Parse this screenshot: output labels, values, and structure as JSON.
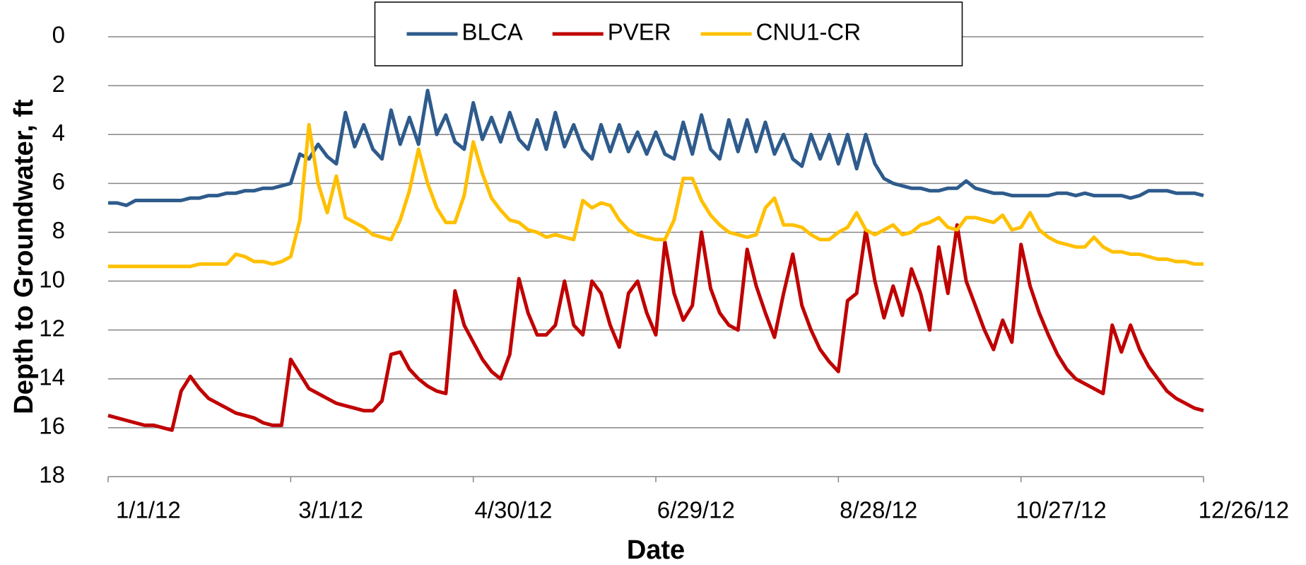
{
  "chart_data": {
    "type": "line",
    "y_axis_label": "Depth to Groundwater, ft",
    "x_axis_label": "Date",
    "ylim": [
      0,
      18
    ],
    "y_inverted": true,
    "yticks": [
      0,
      2,
      4,
      6,
      8,
      10,
      12,
      14,
      16,
      18
    ],
    "xlim": [
      "1/1/12",
      "12/26/12"
    ],
    "xticks": [
      "1/1/12",
      "3/1/12",
      "4/30/12",
      "6/29/12",
      "8/28/12",
      "10/27/12",
      "12/26/12"
    ],
    "grid": true,
    "legend": "top",
    "x": [
      "1/1/12",
      "1/4/12",
      "1/7/12",
      "1/10/12",
      "1/13/12",
      "1/16/12",
      "1/19/12",
      "1/22/12",
      "1/25/12",
      "1/28/12",
      "1/31/12",
      "2/3/12",
      "2/6/12",
      "2/9/12",
      "2/12/12",
      "2/15/12",
      "2/18/12",
      "2/21/12",
      "2/24/12",
      "2/27/12",
      "3/1/12",
      "3/4/12",
      "3/7/12",
      "3/10/12",
      "3/13/12",
      "3/16/12",
      "3/19/12",
      "3/22/12",
      "3/25/12",
      "3/28/12",
      "3/31/12",
      "4/3/12",
      "4/6/12",
      "4/9/12",
      "4/12/12",
      "4/15/12",
      "4/18/12",
      "4/21/12",
      "4/24/12",
      "4/27/12",
      "4/30/12",
      "5/3/12",
      "5/6/12",
      "5/9/12",
      "5/12/12",
      "5/15/12",
      "5/18/12",
      "5/21/12",
      "5/24/12",
      "5/27/12",
      "5/30/12",
      "6/2/12",
      "6/5/12",
      "6/8/12",
      "6/11/12",
      "6/14/12",
      "6/17/12",
      "6/20/12",
      "6/23/12",
      "6/26/12",
      "6/29/12",
      "7/2/12",
      "7/5/12",
      "7/8/12",
      "7/11/12",
      "7/14/12",
      "7/17/12",
      "7/20/12",
      "7/23/12",
      "7/26/12",
      "7/29/12",
      "8/1/12",
      "8/4/12",
      "8/7/12",
      "8/10/12",
      "8/13/12",
      "8/16/12",
      "8/19/12",
      "8/22/12",
      "8/25/12",
      "8/28/12",
      "8/31/12",
      "9/3/12",
      "9/6/12",
      "9/9/12",
      "9/12/12",
      "9/15/12",
      "9/18/12",
      "9/21/12",
      "9/24/12",
      "9/27/12",
      "9/30/12",
      "10/3/12",
      "10/6/12",
      "10/9/12",
      "10/12/12",
      "10/15/12",
      "10/18/12",
      "10/21/12",
      "10/24/12",
      "10/27/12",
      "10/30/12",
      "11/2/12",
      "11/5/12",
      "11/8/12",
      "11/11/12",
      "11/14/12",
      "11/17/12",
      "11/20/12",
      "11/23/12",
      "11/26/12",
      "11/29/12",
      "12/2/12",
      "12/5/12",
      "12/8/12",
      "12/11/12",
      "12/14/12",
      "12/17/12",
      "12/20/12",
      "12/23/12",
      "12/26/12"
    ],
    "series": [
      {
        "name": "BLCA",
        "color": "#2e5b8c",
        "values": [
          6.8,
          6.8,
          6.9,
          6.7,
          6.7,
          6.7,
          6.7,
          6.7,
          6.7,
          6.6,
          6.6,
          6.5,
          6.5,
          6.4,
          6.4,
          6.3,
          6.3,
          6.2,
          6.2,
          6.1,
          6.0,
          4.8,
          5.0,
          4.4,
          4.9,
          5.2,
          3.1,
          4.5,
          3.6,
          4.6,
          5.0,
          3.0,
          4.4,
          3.3,
          4.4,
          2.2,
          4.0,
          3.2,
          4.3,
          4.6,
          2.7,
          4.2,
          3.3,
          4.3,
          3.1,
          4.2,
          4.6,
          3.4,
          4.6,
          3.1,
          4.5,
          3.6,
          4.6,
          5.0,
          3.6,
          4.7,
          3.6,
          4.7,
          3.9,
          4.8,
          3.9,
          4.8,
          5.0,
          3.5,
          4.8,
          3.2,
          4.6,
          5.0,
          3.4,
          4.7,
          3.4,
          4.7,
          3.5,
          4.8,
          4.0,
          5.0,
          5.3,
          4.0,
          5.0,
          4.0,
          5.2,
          4.0,
          5.4,
          4.0,
          5.2,
          5.8,
          6.0,
          6.1,
          6.2,
          6.2,
          6.3,
          6.3,
          6.2,
          6.2,
          5.9,
          6.2,
          6.3,
          6.4,
          6.4,
          6.5,
          6.5,
          6.5,
          6.5,
          6.5,
          6.4,
          6.4,
          6.5,
          6.4,
          6.5,
          6.5,
          6.5,
          6.5,
          6.6,
          6.5,
          6.3,
          6.3,
          6.3,
          6.4,
          6.4,
          6.4,
          6.5
        ]
      },
      {
        "name": "PVER",
        "color": "#c00000",
        "values": [
          15.5,
          15.6,
          15.7,
          15.8,
          15.9,
          15.9,
          16.0,
          16.1,
          14.5,
          13.9,
          14.4,
          14.8,
          15.0,
          15.2,
          15.4,
          15.5,
          15.6,
          15.8,
          15.9,
          15.9,
          13.2,
          13.8,
          14.4,
          14.6,
          14.8,
          15.0,
          15.1,
          15.2,
          15.3,
          15.3,
          14.9,
          13.0,
          12.9,
          13.6,
          14.0,
          14.3,
          14.5,
          14.6,
          10.4,
          11.8,
          12.5,
          13.2,
          13.7,
          14.0,
          13.0,
          9.9,
          11.3,
          12.2,
          12.2,
          11.8,
          10.0,
          11.8,
          12.2,
          10.0,
          10.5,
          11.8,
          12.7,
          10.5,
          10.0,
          11.3,
          12.2,
          8.4,
          10.5,
          11.6,
          11.0,
          8.0,
          10.3,
          11.3,
          11.8,
          12.0,
          8.7,
          10.2,
          11.3,
          12.3,
          10.5,
          8.9,
          11.0,
          12.0,
          12.8,
          13.3,
          13.7,
          10.8,
          10.5,
          7.9,
          10.0,
          11.5,
          10.2,
          11.4,
          9.5,
          10.5,
          12.0,
          8.6,
          10.5,
          7.7,
          10.0,
          11.0,
          12.0,
          12.8,
          11.6,
          12.5,
          8.5,
          10.2,
          11.3,
          12.2,
          13.0,
          13.6,
          14.0,
          14.2,
          14.4,
          14.6,
          11.8,
          12.9,
          11.8,
          12.8,
          13.5,
          14.0,
          14.5,
          14.8,
          15.0,
          15.2,
          15.3
        ]
      },
      {
        "name": "CNU1-CR",
        "color": "#ffc000",
        "values": [
          9.4,
          9.4,
          9.4,
          9.4,
          9.4,
          9.4,
          9.4,
          9.4,
          9.4,
          9.4,
          9.3,
          9.3,
          9.3,
          9.3,
          8.9,
          9.0,
          9.2,
          9.2,
          9.3,
          9.2,
          9.0,
          7.5,
          3.6,
          6.0,
          7.2,
          5.7,
          7.4,
          7.6,
          7.8,
          8.1,
          8.2,
          8.3,
          7.5,
          6.3,
          4.6,
          6.0,
          7.0,
          7.6,
          7.6,
          6.5,
          4.3,
          5.6,
          6.6,
          7.1,
          7.5,
          7.6,
          7.9,
          8.0,
          8.2,
          8.1,
          8.2,
          8.3,
          6.7,
          7.0,
          6.8,
          6.9,
          7.5,
          7.9,
          8.1,
          8.2,
          8.3,
          8.3,
          7.5,
          5.8,
          5.8,
          6.7,
          7.3,
          7.7,
          8.0,
          8.1,
          8.2,
          8.1,
          7.0,
          6.6,
          7.7,
          7.7,
          7.8,
          8.1,
          8.3,
          8.3,
          8.0,
          7.8,
          7.2,
          7.9,
          8.1,
          7.9,
          7.7,
          8.1,
          8.0,
          7.7,
          7.6,
          7.4,
          7.8,
          7.9,
          7.4,
          7.4,
          7.5,
          7.6,
          7.3,
          7.9,
          7.8,
          7.2,
          7.9,
          8.2,
          8.4,
          8.5,
          8.6,
          8.6,
          8.2,
          8.6,
          8.8,
          8.8,
          8.9,
          8.9,
          9.0,
          9.1,
          9.1,
          9.2,
          9.2,
          9.3,
          9.3
        ]
      }
    ]
  }
}
